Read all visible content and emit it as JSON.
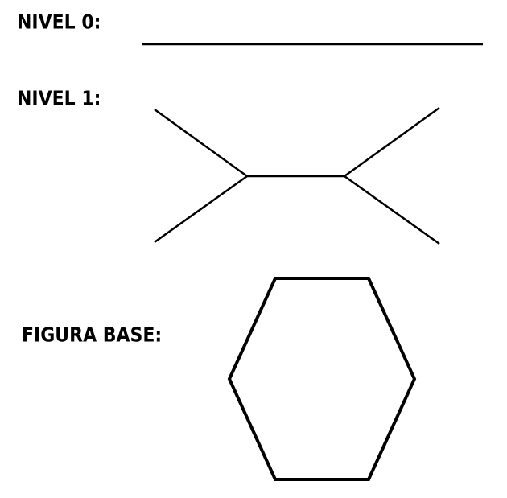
{
  "labels": {
    "level0": "NIVEL 0:",
    "level1": "NIVEL 1:",
    "base": "FIGURA BASE:"
  },
  "colors": {
    "stroke": "#000000",
    "background": "#ffffff"
  }
}
